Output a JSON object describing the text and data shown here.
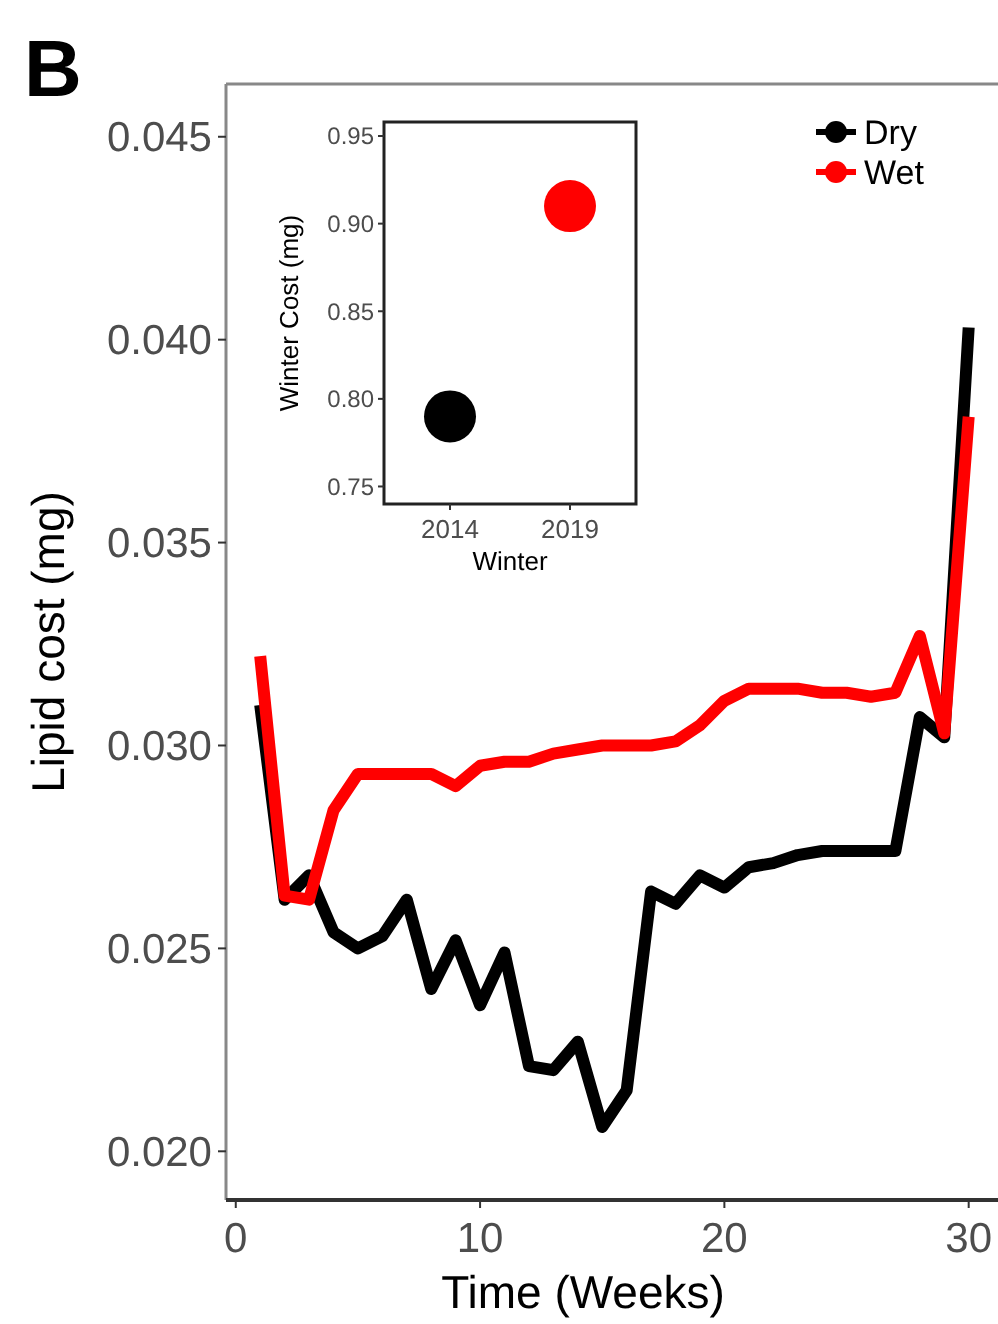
{
  "chart_data": [
    {
      "type": "line",
      "xlabel": "Time (Weeks)",
      "ylabel": "Lipid cost (mg)",
      "annotations": [
        "B"
      ],
      "x": [
        1,
        2,
        3,
        4,
        5,
        6,
        7,
        8,
        9,
        10,
        11,
        12,
        13,
        14,
        15,
        16,
        17,
        18,
        19,
        20,
        21,
        22,
        23,
        24,
        25,
        26,
        27,
        28,
        29,
        30
      ],
      "series": [
        {
          "name": "Dry",
          "color": "#000000",
          "values": [
            0.031,
            0.0262,
            0.0268,
            0.0254,
            0.025,
            0.0253,
            0.0262,
            0.024,
            0.0252,
            0.0236,
            0.0249,
            0.0221,
            0.022,
            0.0227,
            0.0206,
            0.0215,
            0.0264,
            0.0261,
            0.0268,
            0.0265,
            0.027,
            0.0271,
            0.0273,
            0.0274,
            0.0274,
            0.0274,
            0.0274,
            0.0307,
            0.0302,
            0.0403
          ]
        },
        {
          "name": "Wet",
          "color": "#ff0000",
          "values": [
            0.0322,
            0.0263,
            0.0262,
            0.0284,
            0.0293,
            0.0293,
            0.0293,
            0.0293,
            0.029,
            0.0295,
            0.0296,
            0.0296,
            0.0298,
            0.0299,
            0.03,
            0.03,
            0.03,
            0.0301,
            0.0305,
            0.0311,
            0.0314,
            0.0314,
            0.0314,
            0.0313,
            0.0313,
            0.0312,
            0.0313,
            0.0327,
            0.0303,
            0.0381
          ]
        }
      ],
      "xlim": [
        -0.4,
        31.2
      ],
      "xticks": [
        0,
        10,
        20,
        30
      ],
      "ylim": [
        0.0188,
        0.0463
      ],
      "yticks": [
        {
          "value": 0.02,
          "label": "0.020"
        },
        0.025,
        {
          "value": 0.03,
          "label": "0.030"
        },
        0.035,
        {
          "value": 0.04,
          "label": "0.040"
        },
        0.045
      ],
      "grid": false,
      "legend": "top right",
      "marker": "none",
      "line_style": "solid"
    },
    {
      "type": "scatter",
      "xlabel": "Winter",
      "ylabel": "Winter Cost (mg)",
      "categories": [
        "2014",
        "2019"
      ],
      "values": [
        0.79,
        0.91
      ],
      "colors": [
        "#000000",
        "#ff0000"
      ],
      "ylim": [
        0.74,
        0.958
      ],
      "yticks": [
        0.75,
        {
          "value": 0.8,
          "label": "0.80"
        },
        0.85,
        {
          "value": 0.9,
          "label": "0.90"
        },
        0.95
      ],
      "grid": false,
      "marker": "circle"
    }
  ]
}
